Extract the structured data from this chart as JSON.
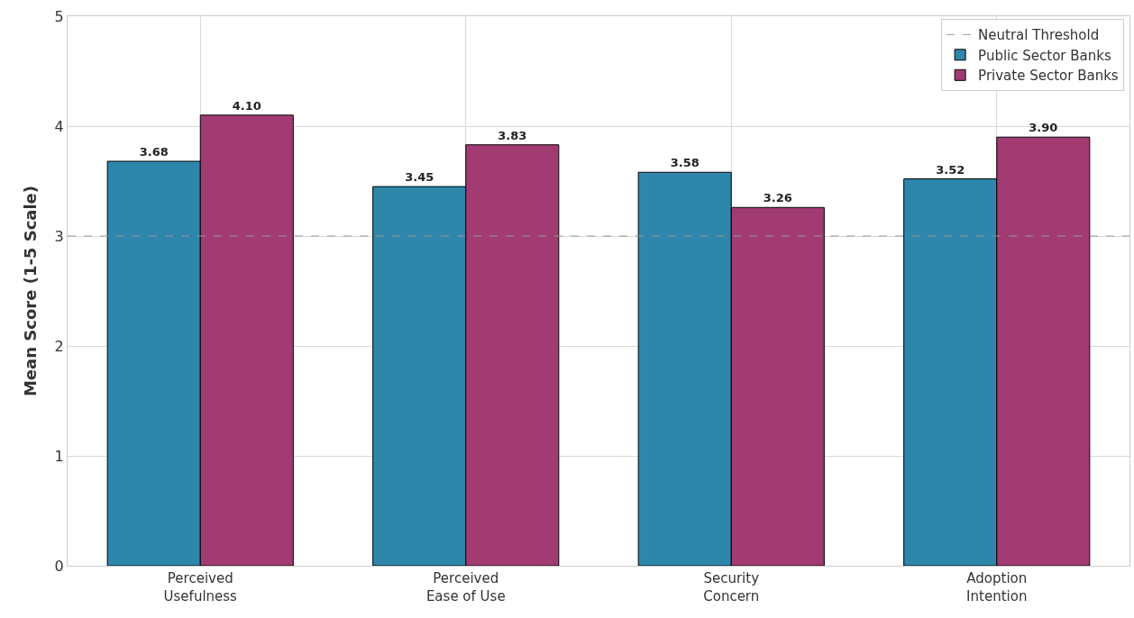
{
  "chart_data": {
    "type": "bar",
    "ylabel": "Mean Score (1-5 Scale)",
    "categories": [
      "Perceived\nUsefulness",
      "Perceived\nEase of Use",
      "Security\nConcern",
      "Adoption\nIntention"
    ],
    "series": [
      {
        "name": "Public Sector Banks",
        "color": "#2e86ab",
        "values": [
          3.68,
          3.45,
          3.58,
          3.52
        ],
        "value_labels": [
          "3.68",
          "3.45",
          "3.58",
          "3.52"
        ]
      },
      {
        "name": "Private Sector Banks",
        "color": "#a23b72",
        "values": [
          4.1,
          3.83,
          3.26,
          3.9
        ],
        "value_labels": [
          "4.10",
          "3.83",
          "3.26",
          "3.90"
        ]
      }
    ],
    "ylim": [
      0,
      5
    ],
    "yticks": [
      0,
      1,
      2,
      3,
      4,
      5
    ],
    "grid": true,
    "legend": "top right",
    "ref_lines": [
      {
        "axis": "y",
        "value": 3,
        "label": "Neutral Threshold",
        "color": "#999999",
        "line_style": "dashed"
      }
    ]
  }
}
